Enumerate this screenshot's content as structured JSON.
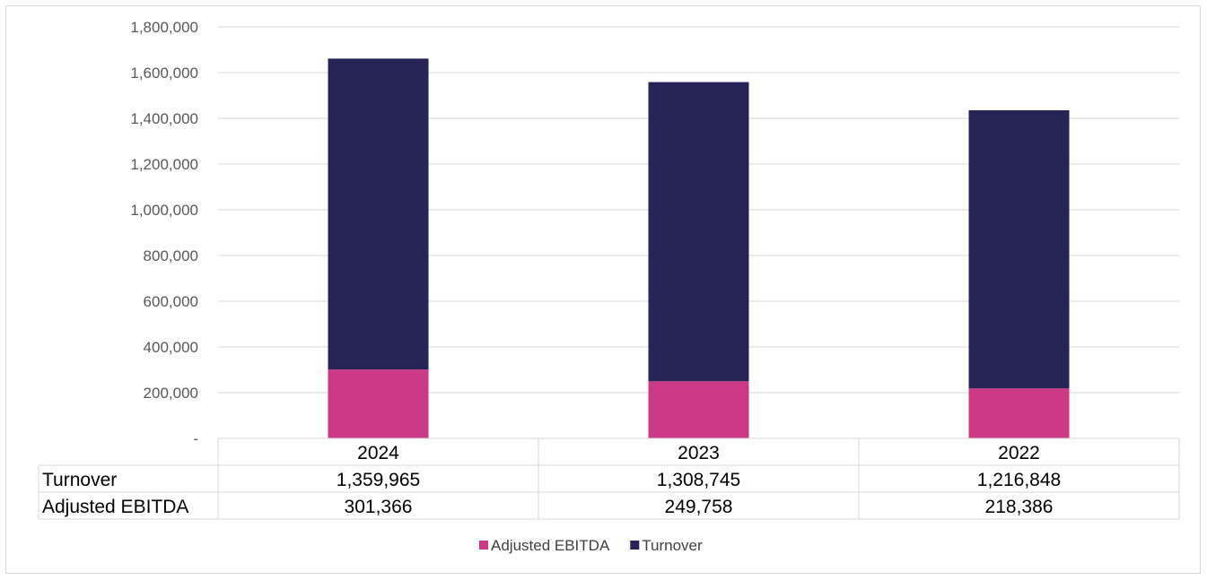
{
  "chart_data": {
    "type": "bar",
    "stacked": true,
    "categories": [
      "2024",
      "2023",
      "2022"
    ],
    "series": [
      {
        "name": "Adjusted EBITDA",
        "values": [
          301366,
          249758,
          218386
        ],
        "color": "#cc3a86",
        "labels": [
          "301,366",
          "249,758",
          "218,386"
        ]
      },
      {
        "name": "Turnover",
        "values": [
          1359965,
          1308745,
          1216848
        ],
        "color": "#262357",
        "labels": [
          "1,359,965",
          "1,308,745",
          "1,216,848"
        ]
      }
    ],
    "ylim": [
      0,
      1800000
    ],
    "yticks": [
      {
        "value": 0,
        "label": "-"
      },
      {
        "value": 200000,
        "label": "200,000"
      },
      {
        "value": 400000,
        "label": "400,000"
      },
      {
        "value": 600000,
        "label": "600,000"
      },
      {
        "value": 800000,
        "label": "800,000"
      },
      {
        "value": 1000000,
        "label": "1,000,000"
      },
      {
        "value": 1200000,
        "label": "1,200,000"
      },
      {
        "value": 1400000,
        "label": "1,400,000"
      },
      {
        "value": 1600000,
        "label": "1,600,000"
      },
      {
        "value": 1800000,
        "label": "1,800,000"
      }
    ],
    "grid": true,
    "legend": "bottom",
    "data_table": {
      "rows": [
        {
          "label": "Turnover",
          "series_index": 1
        },
        {
          "label": "Adjusted EBITDA",
          "series_index": 0
        }
      ]
    },
    "gridline_color": "#d9d9d9"
  }
}
